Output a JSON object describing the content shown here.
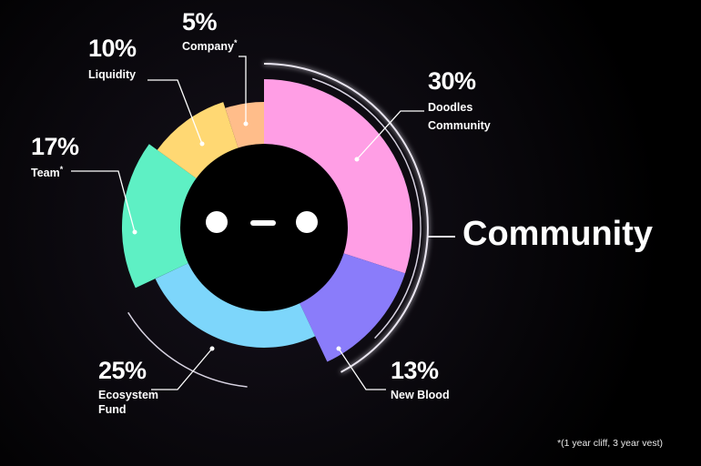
{
  "chart_data": {
    "type": "pie",
    "slices": [
      {
        "label": "Doodles Community",
        "value": 30,
        "pct_text": "30%",
        "lines": [
          "Doodles",
          "Community"
        ],
        "color": "#ff9ee5",
        "mark": ""
      },
      {
        "label": "New Blood",
        "value": 13,
        "pct_text": "13%",
        "lines": [
          "New Blood"
        ],
        "color": "#8a7cfa",
        "mark": ""
      },
      {
        "label": "Ecosystem Fund",
        "value": 25,
        "pct_text": "25%",
        "lines": [
          "Ecosystem",
          "Fund"
        ],
        "color": "#7dd6fb",
        "mark": ""
      },
      {
        "label": "Team",
        "value": 17,
        "pct_text": "17%",
        "lines": [
          "Team"
        ],
        "color": "#5ef0c4",
        "mark": "*"
      },
      {
        "label": "Liquidity",
        "value": 10,
        "pct_text": "10%",
        "lines": [
          "Liquidity"
        ],
        "color": "#ffd873",
        "mark": ""
      },
      {
        "label": "Company",
        "value": 5,
        "pct_text": "5%",
        "lines": [
          "Company"
        ],
        "color": "#ffbd8a",
        "mark": "*"
      }
    ],
    "group_label": "Community",
    "footnote": "*(1 year cliff, 3 year vest)"
  }
}
